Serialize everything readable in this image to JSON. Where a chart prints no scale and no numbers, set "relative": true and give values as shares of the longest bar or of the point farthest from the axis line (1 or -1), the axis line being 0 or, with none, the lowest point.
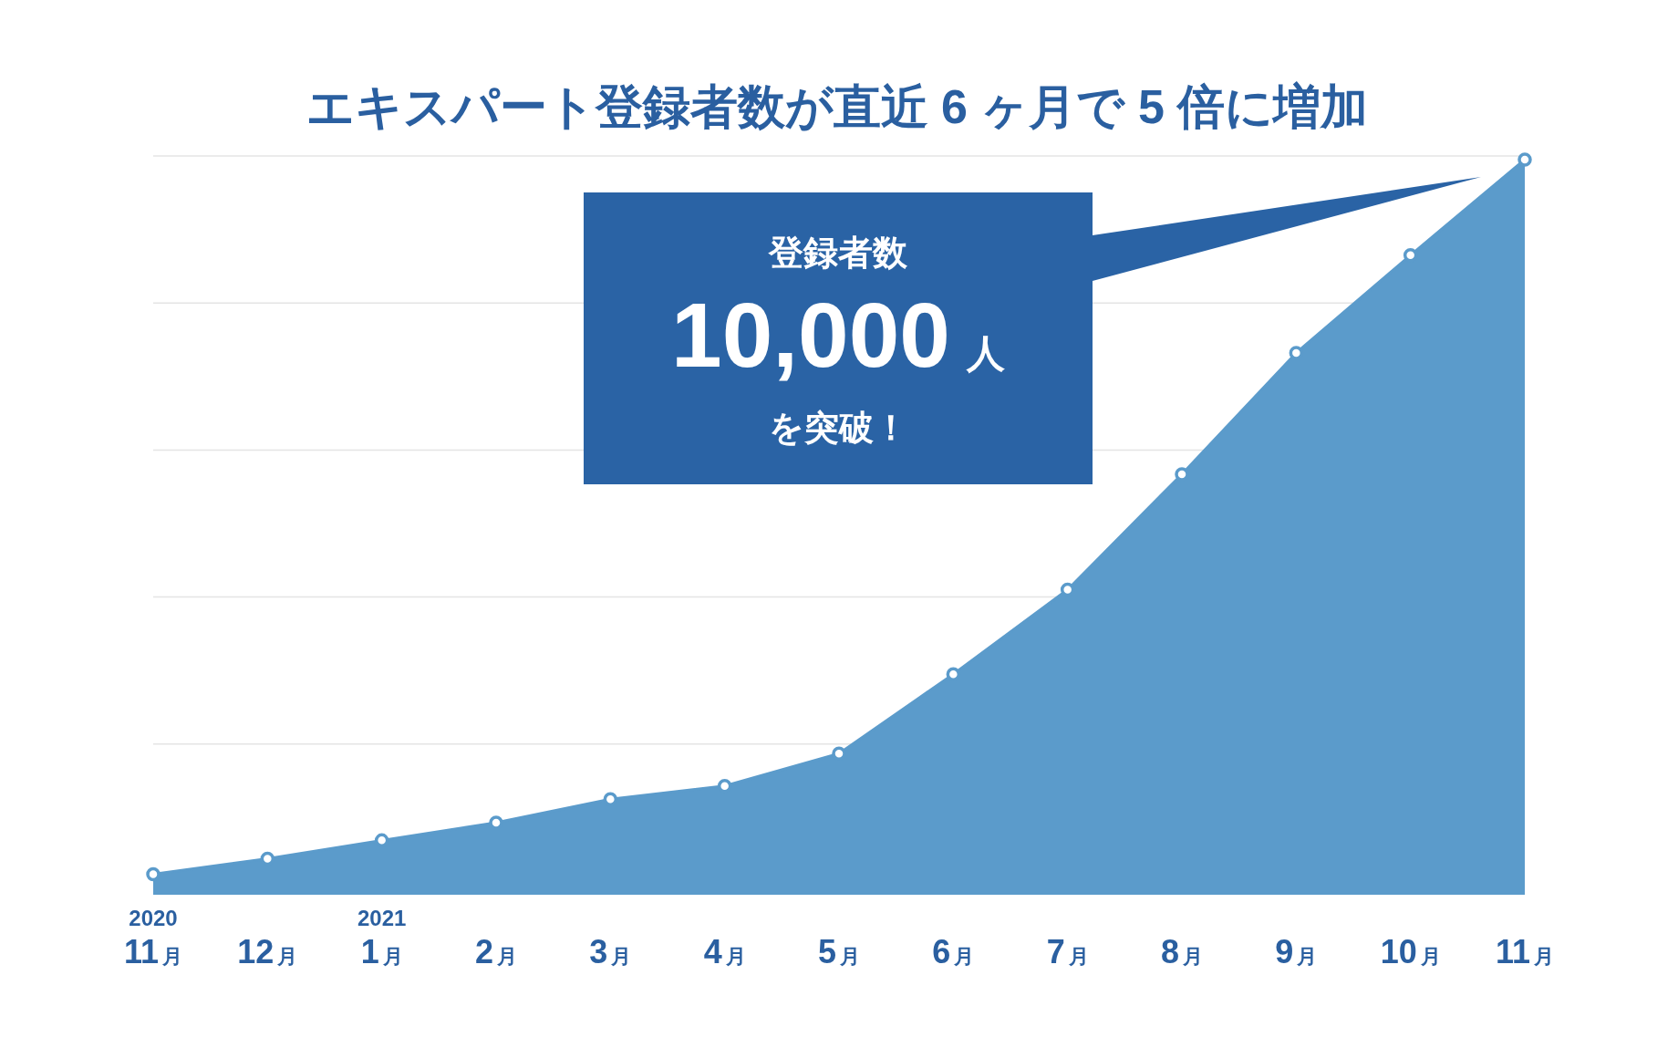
{
  "chart_data": {
    "type": "area",
    "title": "エキスパート登録者数が直近 6 ヶ月で 5 倍に増加",
    "relative": true,
    "grid": "y",
    "marker": "circle",
    "categories": [
      "11月",
      "12月",
      "1月",
      "2月",
      "3月",
      "4月",
      "5月",
      "6月",
      "7月",
      "8月",
      "9月",
      "10月",
      "11月"
    ],
    "series": [
      {
        "color": "#5b9bcb",
        "values": [
          0.028,
          0.049,
          0.074,
          0.098,
          0.13,
          0.148,
          0.192,
          0.3,
          0.415,
          0.572,
          0.737,
          0.87,
          1
        ]
      }
    ],
    "annotations": [
      "2020",
      "2021",
      "登録者数",
      "10,000人",
      "を突破！"
    ]
  }
}
